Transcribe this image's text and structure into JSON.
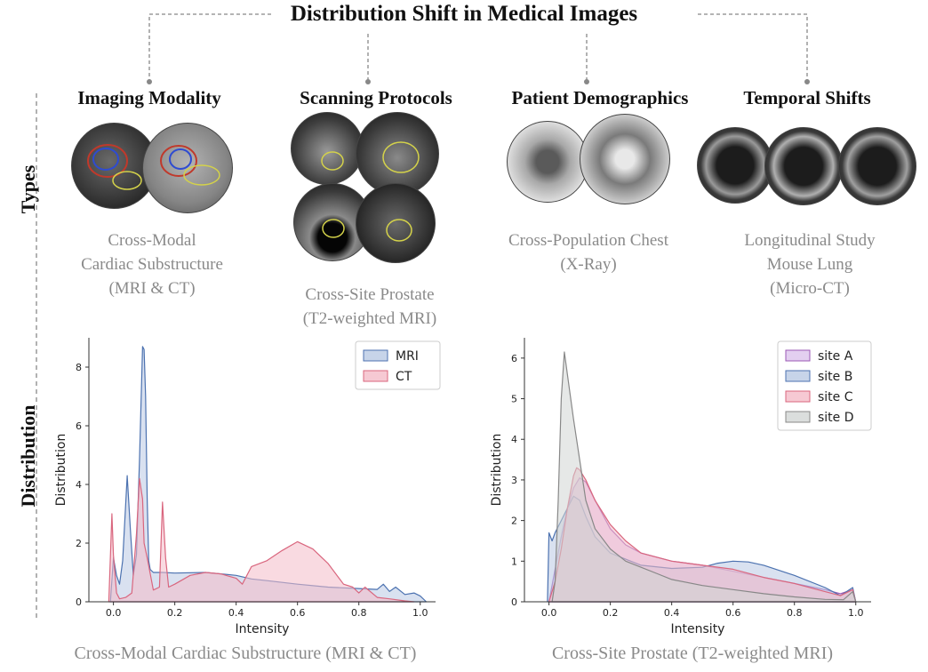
{
  "title": "Distribution Shift  in Medical Images",
  "side_labels": {
    "types": "Types",
    "distribution": "Distribution"
  },
  "types": [
    {
      "heading": "Imaging Modality",
      "caption_lines": [
        "Cross-Modal",
        "Cardiac Substructure",
        "(MRI & CT)"
      ]
    },
    {
      "heading": "Scanning Protocols",
      "caption_lines": [
        "Cross-Site Prostate",
        "(T2-weighted MRI)"
      ]
    },
    {
      "heading": "Patient Demographics",
      "caption_lines": [
        "Cross-Population Chest",
        "(X-Ray)"
      ]
    },
    {
      "heading": "Temporal Shifts",
      "caption_lines": [
        "Longitudinal Study",
        "Mouse Lung",
        "(Micro-CT)"
      ]
    }
  ],
  "bottom_captions": [
    "Cross-Modal Cardiac Substructure  (MRI & CT)",
    "Cross-Site Prostate  (T2-weighted MRI)"
  ],
  "chart_data": [
    {
      "type": "area",
      "xlabel": "Intensity",
      "ylabel": "Distribution",
      "xlim": [
        -0.08,
        1.05
      ],
      "ylim": [
        0,
        9
      ],
      "xticks": [
        0.0,
        0.2,
        0.4,
        0.6,
        0.8,
        1.0
      ],
      "xtick_labels": [
        "0.0",
        "0.2",
        "0.4",
        "0.6",
        "0.8",
        "1.0"
      ],
      "yticks": [
        0,
        2,
        4,
        6,
        8
      ],
      "ytick_labels": [
        "0",
        "2",
        "4",
        "6",
        "8"
      ],
      "legend_position": "top-right",
      "series": [
        {
          "name": "MRI",
          "color": "#4c72b0",
          "fill": "#b9c9e3",
          "x": [
            -0.01,
            0.0,
            0.01,
            0.02,
            0.03,
            0.045,
            0.055,
            0.065,
            0.075,
            0.085,
            0.095,
            0.1,
            0.105,
            0.11,
            0.115,
            0.12,
            0.13,
            0.14,
            0.15,
            0.16,
            0.2,
            0.3,
            0.35,
            0.4,
            0.45,
            0.5,
            0.6,
            0.7,
            0.8,
            0.86,
            0.88,
            0.9,
            0.92,
            0.95,
            0.98,
            1.0,
            1.02
          ],
          "y": [
            0,
            1.5,
            0.9,
            0.6,
            1.4,
            4.3,
            2.5,
            0.9,
            1.6,
            4.8,
            8.7,
            8.6,
            7.0,
            3.5,
            1.4,
            1.1,
            1.0,
            1.0,
            1.0,
            1.0,
            0.98,
            1.0,
            0.95,
            0.9,
            0.78,
            0.72,
            0.6,
            0.5,
            0.45,
            0.42,
            0.6,
            0.35,
            0.5,
            0.25,
            0.3,
            0.2,
            0
          ]
        },
        {
          "name": "CT",
          "color": "#d9667e",
          "fill": "#f4bcc8",
          "x": [
            -0.015,
            -0.005,
            0.0,
            0.01,
            0.02,
            0.04,
            0.06,
            0.075,
            0.085,
            0.095,
            0.1,
            0.11,
            0.13,
            0.15,
            0.16,
            0.17,
            0.18,
            0.2,
            0.25,
            0.3,
            0.35,
            0.4,
            0.42,
            0.45,
            0.5,
            0.55,
            0.6,
            0.65,
            0.7,
            0.75,
            0.78,
            0.8,
            0.82,
            0.86,
            0.9,
            0.95,
            0.98
          ],
          "y": [
            0,
            3.0,
            1.6,
            0.3,
            0.1,
            0.15,
            0.3,
            2.3,
            4.2,
            3.5,
            2.0,
            1.5,
            0.4,
            0.5,
            3.4,
            1.5,
            0.5,
            0.6,
            0.9,
            1.0,
            0.95,
            0.8,
            0.6,
            1.2,
            1.4,
            1.75,
            2.05,
            1.8,
            1.3,
            0.6,
            0.5,
            0.3,
            0.5,
            0.15,
            0.1,
            0.03,
            0
          ]
        }
      ]
    },
    {
      "type": "area",
      "xlabel": "Intensity",
      "ylabel": "Distribution",
      "xlim": [
        -0.08,
        1.05
      ],
      "ylim": [
        0,
        6.5
      ],
      "xticks": [
        0.0,
        0.2,
        0.4,
        0.6,
        0.8,
        1.0
      ],
      "xtick_labels": [
        "0.0",
        "0.2",
        "0.4",
        "0.6",
        "0.8",
        "1.0"
      ],
      "yticks": [
        0,
        1,
        2,
        3,
        4,
        5,
        6
      ],
      "ytick_labels": [
        "0",
        "1",
        "2",
        "3",
        "4",
        "5",
        "6"
      ],
      "legend_position": "top-right",
      "series": [
        {
          "name": "site A",
          "color": "#9b59b6",
          "fill": "#dcc3ec",
          "x": [
            0.0,
            0.02,
            0.04,
            0.06,
            0.08,
            0.1,
            0.12,
            0.15,
            0.2,
            0.25,
            0.3,
            0.4,
            0.5,
            0.6,
            0.7,
            0.8,
            0.9,
            0.95,
            0.99,
            1.0
          ],
          "y": [
            0,
            0.8,
            1.6,
            2.3,
            2.8,
            3.05,
            2.95,
            2.5,
            1.8,
            1.4,
            1.2,
            1.0,
            0.9,
            0.75,
            0.6,
            0.45,
            0.3,
            0.2,
            0.3,
            0
          ]
        },
        {
          "name": "site B",
          "color": "#4c72b0",
          "fill": "#b9c9e3",
          "x": [
            -0.005,
            0.0,
            0.01,
            0.02,
            0.04,
            0.06,
            0.08,
            0.1,
            0.12,
            0.15,
            0.2,
            0.3,
            0.4,
            0.5,
            0.55,
            0.6,
            0.65,
            0.7,
            0.8,
            0.9,
            0.95,
            0.99,
            1.0
          ],
          "y": [
            0,
            1.7,
            1.5,
            1.7,
            2.0,
            2.3,
            2.6,
            2.5,
            2.1,
            1.6,
            1.2,
            0.9,
            0.82,
            0.85,
            0.95,
            1.0,
            0.98,
            0.9,
            0.65,
            0.35,
            0.15,
            0.35,
            0
          ]
        },
        {
          "name": "site C",
          "color": "#d9667e",
          "fill": "#f4bcc8",
          "x": [
            0.0,
            0.02,
            0.04,
            0.06,
            0.08,
            0.09,
            0.1,
            0.12,
            0.15,
            0.2,
            0.25,
            0.3,
            0.4,
            0.5,
            0.6,
            0.7,
            0.8,
            0.9,
            0.95,
            0.99,
            1.0
          ],
          "y": [
            0,
            0.5,
            1.3,
            2.3,
            3.1,
            3.3,
            3.25,
            3.0,
            2.5,
            1.9,
            1.5,
            1.2,
            1.0,
            0.9,
            0.8,
            0.6,
            0.45,
            0.25,
            0.15,
            0.3,
            0
          ]
        },
        {
          "name": "site D",
          "color": "#888888",
          "fill": "#d2d6d4",
          "x": [
            0.01,
            0.02,
            0.03,
            0.04,
            0.05,
            0.06,
            0.08,
            0.1,
            0.12,
            0.15,
            0.2,
            0.25,
            0.3,
            0.35,
            0.4,
            0.5,
            0.6,
            0.7,
            0.8,
            0.9,
            0.96,
            0.99,
            1.0
          ],
          "y": [
            0,
            0.5,
            2.5,
            5.0,
            6.15,
            5.6,
            4.5,
            3.5,
            2.5,
            1.8,
            1.3,
            1.0,
            0.85,
            0.7,
            0.55,
            0.4,
            0.3,
            0.2,
            0.12,
            0.06,
            0.05,
            0.25,
            0
          ]
        }
      ]
    }
  ]
}
